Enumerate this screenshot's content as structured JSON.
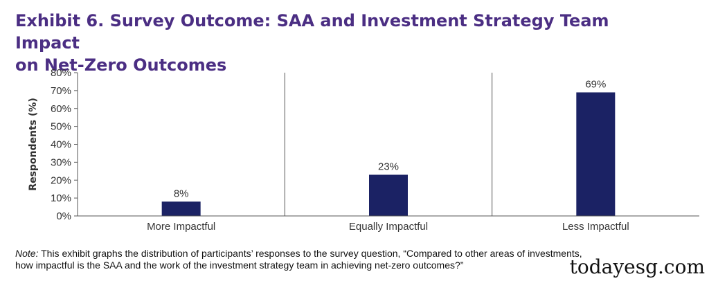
{
  "title_line1": "Exhibit 6. Survey Outcome: SAA and Investment Strategy Team Impact",
  "title_line2": "on Net-Zero Outcomes",
  "note_label": "Note:",
  "note_line1": " This exhibit graphs the distribution of participants’ responses to the survey question, “Compared to other areas of investments,",
  "note_line2": "how impactful is the SAA and the work of the investment strategy team in achieving net-zero outcomes?”",
  "brand": "todayesg.com",
  "colors": {
    "bar": "#1b2264",
    "title": "#4b2e83",
    "axis": "#555555"
  },
  "chart_data": {
    "type": "bar",
    "title": "Exhibit 6. Survey Outcome: SAA and Investment Strategy Team Impact on Net-Zero Outcomes",
    "xlabel": "",
    "ylabel": "Respondents (%)",
    "categories": [
      "More Impactful",
      "Equally Impactful",
      "Less Impactful"
    ],
    "values": [
      8,
      23,
      69
    ],
    "value_labels": [
      "8%",
      "23%",
      "69%"
    ],
    "ylim": [
      0,
      80
    ],
    "yticks": [
      0,
      10,
      20,
      30,
      40,
      50,
      60,
      70,
      80
    ],
    "ytick_labels": [
      "0%",
      "10%",
      "20%",
      "30%",
      "40%",
      "50%",
      "60%",
      "70%",
      "80%"
    ],
    "grid": false,
    "category_separators": true
  }
}
